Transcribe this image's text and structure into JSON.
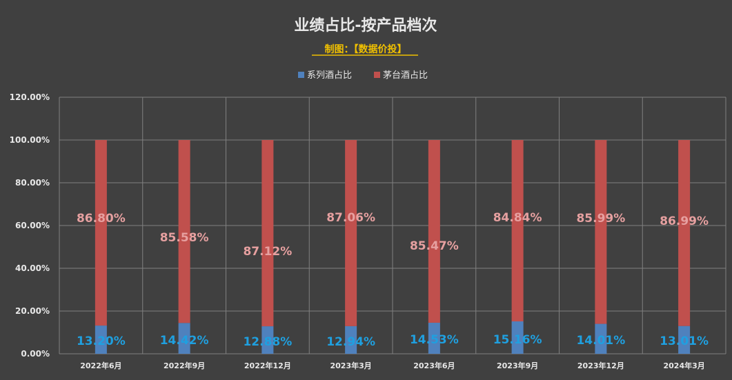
{
  "chart_data": {
    "type": "bar",
    "stacked": true,
    "title": "业绩占比-按产品档次",
    "subtitle": "制图：【数据价投】",
    "categories": [
      "2022年6月",
      "2022年9月",
      "2022年12月",
      "2023年3月",
      "2023年6月",
      "2023年9月",
      "2023年12月",
      "2024年3月"
    ],
    "series": [
      {
        "name": "系列酒占比",
        "color": "#4f81bd",
        "values": [
          13.2,
          14.42,
          12.88,
          12.94,
          14.53,
          15.16,
          14.01,
          13.01
        ],
        "labels": [
          "13.20%",
          "14.42%",
          "12.88%",
          "12.94%",
          "14.53%",
          "15.16%",
          "14.01%",
          "13.01%"
        ]
      },
      {
        "name": "茅台酒占比",
        "color": "#c0504d",
        "values": [
          86.8,
          85.58,
          87.12,
          87.06,
          85.47,
          84.84,
          85.99,
          86.99
        ],
        "labels": [
          "86.80%",
          "85.58%",
          "87.12%",
          "87.06%",
          "85.47%",
          "84.84%",
          "85.99%",
          "86.99%"
        ]
      }
    ],
    "ylim": [
      0,
      120
    ],
    "yticks": [
      "0.00%",
      "20.00%",
      "40.00%",
      "60.00%",
      "80.00%",
      "100.00%",
      "120.00%"
    ],
    "xlabel": "",
    "ylabel": "",
    "grid": true,
    "legend": "top-center"
  }
}
